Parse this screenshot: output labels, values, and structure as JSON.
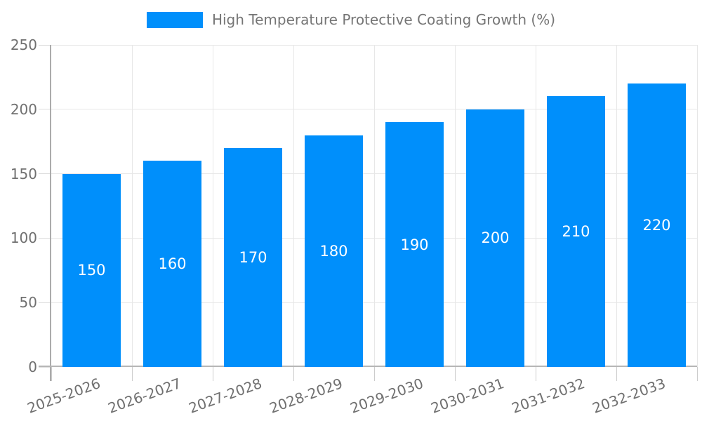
{
  "legend": {
    "label": "High Temperature Protective Coating Growth (%)",
    "swatch_color": "#008FFB"
  },
  "colors": {
    "bar": "#008FFB",
    "bar_label": "#FFFFFF",
    "axis_label": "#707070",
    "legend_text": "#757575",
    "gridline": "#E7E7E7",
    "axis_line": "#ABABAB",
    "background": "#FFFFFF"
  },
  "chart_data": {
    "type": "bar",
    "title": "High Temperature Protective Coating Growth (%)",
    "categories": [
      "2025-2026",
      "2026-2027",
      "2027-2028",
      "2028-2029",
      "2029-2030",
      "2030-2031",
      "2031-2032",
      "2032-2033"
    ],
    "values": [
      150,
      160,
      170,
      180,
      190,
      200,
      210,
      220
    ],
    "value_labels": [
      "150",
      "160",
      "170",
      "180",
      "190",
      "200",
      "210",
      "220"
    ],
    "xlabel": "",
    "ylabel": "",
    "ylim": [
      0,
      250
    ],
    "yticks": [
      0,
      50,
      100,
      150,
      200,
      250
    ],
    "ytick_labels": [
      "0",
      "50",
      "100",
      "150",
      "200",
      "250"
    ],
    "grid": true,
    "legend_position": "top",
    "bar_color": "#008FFB",
    "bar_value_label_position": "center"
  }
}
